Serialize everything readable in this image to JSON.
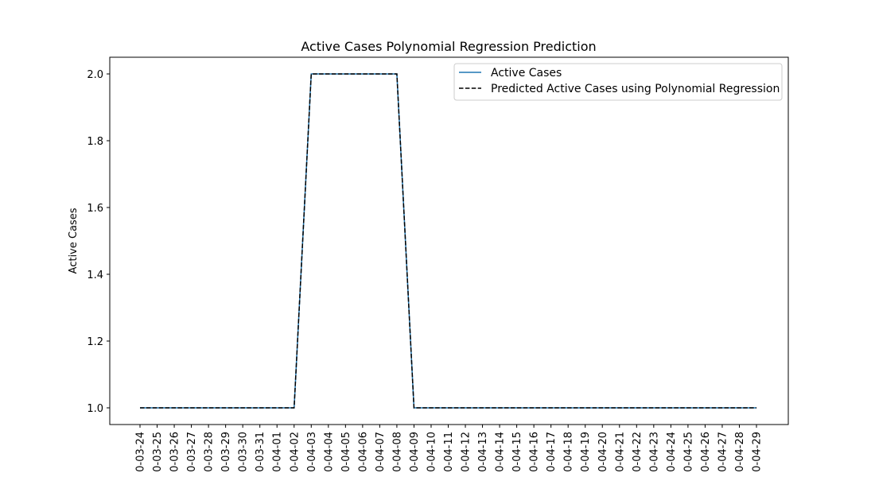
{
  "chart_data": {
    "type": "line",
    "title": "Active Cases Polynomial Regression Prediction",
    "xlabel": "",
    "ylabel": "Active Cases",
    "ylim": [
      0.95,
      2.05
    ],
    "yticks": [
      1.0,
      1.2,
      1.4,
      1.6,
      1.8,
      2.0
    ],
    "ytick_labels": [
      "1.0",
      "1.2",
      "1.4",
      "1.6",
      "1.8",
      "2.0"
    ],
    "grid": false,
    "legend_position": "upper right",
    "categories": [
      "0-03-24",
      "0-03-25",
      "0-03-26",
      "0-03-27",
      "0-03-28",
      "0-03-29",
      "0-03-30",
      "0-03-31",
      "0-04-01",
      "0-04-02",
      "0-04-03",
      "0-04-04",
      "0-04-05",
      "0-04-06",
      "0-04-07",
      "0-04-08",
      "0-04-09",
      "0-04-10",
      "0-04-11",
      "0-04-12",
      "0-04-13",
      "0-04-14",
      "0-04-15",
      "0-04-16",
      "0-04-17",
      "0-04-18",
      "0-04-19",
      "0-04-20",
      "0-04-21",
      "0-04-22",
      "0-04-23",
      "0-04-24",
      "0-04-25",
      "0-04-26",
      "0-04-27",
      "0-04-28",
      "0-04-29"
    ],
    "series": [
      {
        "name": "Active Cases",
        "color": "#1f77b4",
        "style": "solid",
        "values": [
          1,
          1,
          1,
          1,
          1,
          1,
          1,
          1,
          1,
          1,
          2,
          2,
          2,
          2,
          2,
          2,
          1,
          1,
          1,
          1,
          1,
          1,
          1,
          1,
          1,
          1,
          1,
          1,
          1,
          1,
          1,
          1,
          1,
          1,
          1,
          1,
          1
        ]
      },
      {
        "name": "Predicted Active Cases using Polynomial Regression",
        "color": "#000000",
        "style": "dashed",
        "values": [
          1,
          1,
          1,
          1,
          1,
          1,
          1,
          1,
          1,
          1,
          2,
          2,
          2,
          2,
          2,
          2,
          1,
          1,
          1,
          1,
          1,
          1,
          1,
          1,
          1,
          1,
          1,
          1,
          1,
          1,
          1,
          1,
          1,
          1,
          1,
          1,
          1
        ]
      }
    ]
  }
}
